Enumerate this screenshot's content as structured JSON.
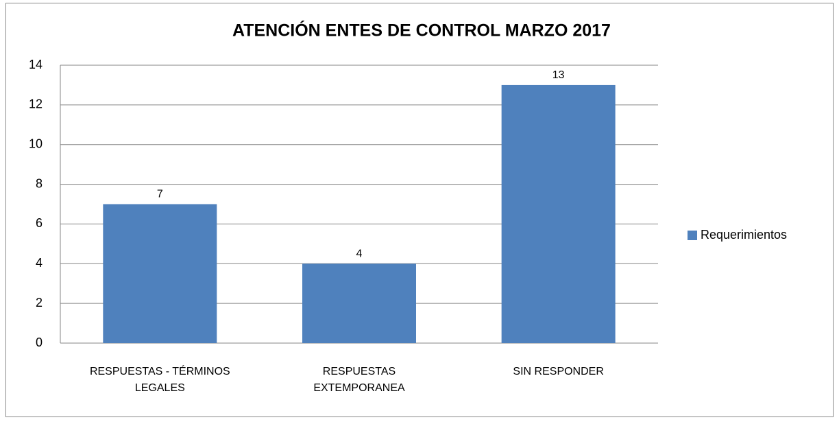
{
  "chart_data": {
    "type": "bar",
    "title": "ATENCIÓN ENTES DE CONTROL MARZO 2017",
    "categories": [
      "RESPUESTAS - TÉRMINOS LEGALES",
      "RESPUESTAS EXTEMPORANEA",
      "SIN RESPONDER"
    ],
    "series": [
      {
        "name": "Requerimientos",
        "color": "#4f81bd",
        "values": [
          7,
          4,
          13
        ]
      }
    ],
    "ylim": [
      0,
      14
    ],
    "yticks": [
      0,
      2,
      4,
      6,
      8,
      10,
      12,
      14
    ],
    "grid": true,
    "legend": "right"
  }
}
